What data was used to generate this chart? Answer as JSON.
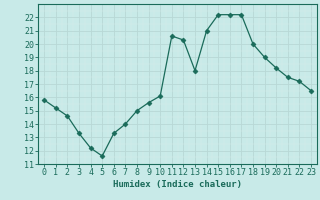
{
  "x": [
    0,
    1,
    2,
    3,
    4,
    5,
    6,
    7,
    8,
    9,
    10,
    11,
    12,
    13,
    14,
    15,
    16,
    17,
    18,
    19,
    20,
    21,
    22,
    23
  ],
  "y": [
    15.8,
    15.2,
    14.6,
    13.3,
    12.2,
    11.6,
    13.3,
    14.0,
    15.0,
    15.6,
    16.1,
    20.6,
    20.3,
    18.0,
    21.0,
    22.2,
    22.2,
    22.2,
    20.0,
    19.0,
    18.2,
    17.5,
    17.2,
    16.5
  ],
  "xlabel": "Humidex (Indice chaleur)",
  "line_color": "#1a6b5a",
  "marker": "D",
  "marker_size": 2.5,
  "bg_color": "#c8eae8",
  "grid_color_major": "#b8d8d6",
  "grid_color_minor": "#d8eeec",
  "ylim": [
    11,
    23
  ],
  "xlim": [
    -0.5,
    23.5
  ],
  "yticks": [
    11,
    12,
    13,
    14,
    15,
    16,
    17,
    18,
    19,
    20,
    21,
    22
  ],
  "xticks": [
    0,
    1,
    2,
    3,
    4,
    5,
    6,
    7,
    8,
    9,
    10,
    11,
    12,
    13,
    14,
    15,
    16,
    17,
    18,
    19,
    20,
    21,
    22,
    23
  ],
  "xlabel_fontsize": 6.5,
  "tick_fontsize": 6.0
}
